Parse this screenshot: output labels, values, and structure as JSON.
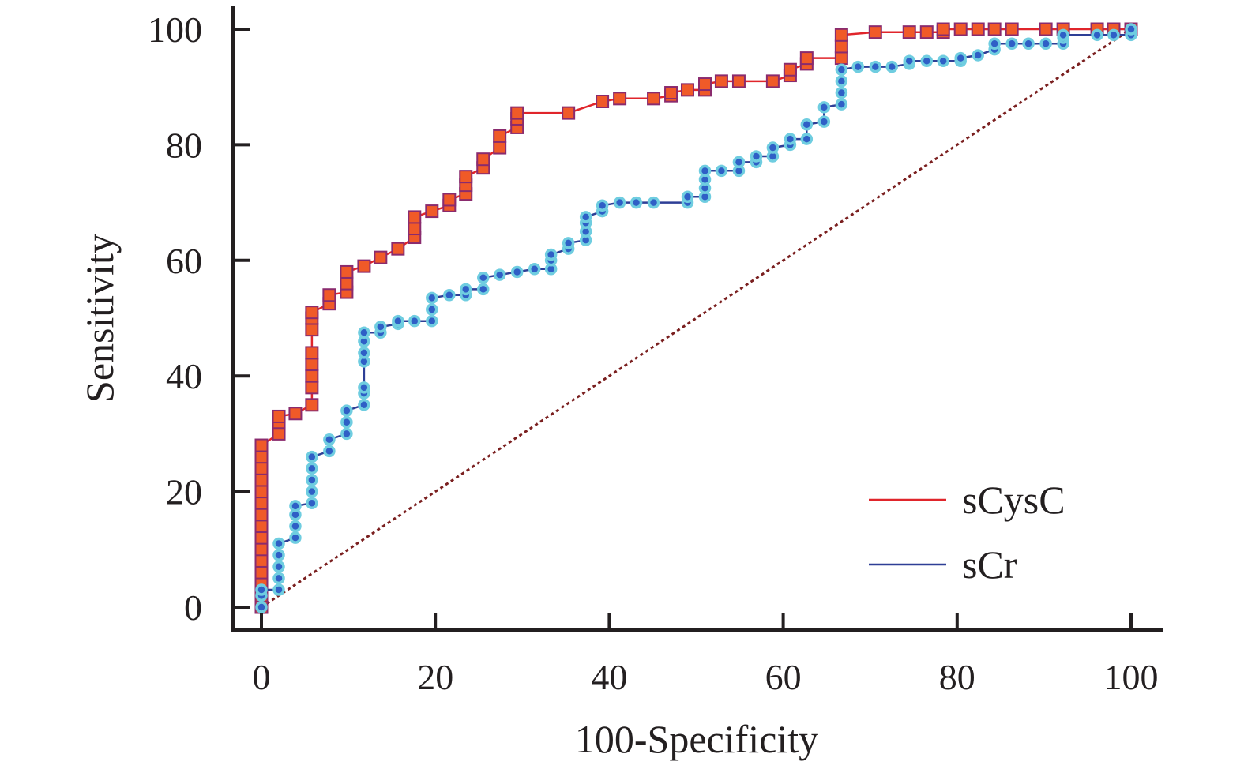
{
  "chart_data": {
    "type": "line",
    "xlabel": "100-Specificity",
    "ylabel": "Sensitivity",
    "xlim": [
      0,
      100
    ],
    "ylim": [
      0,
      100
    ],
    "x_ticks": [
      "0",
      "20",
      "40",
      "60",
      "80",
      "100"
    ],
    "y_ticks": [
      "0",
      "20",
      "40",
      "60",
      "80",
      "100"
    ],
    "legend_position": "bottom-right",
    "reference_line": {
      "from": [
        0,
        0
      ],
      "to": [
        100,
        100
      ],
      "color": "#7a1f1f",
      "style": "dotted"
    },
    "series": [
      {
        "name": "sCysC",
        "line_color": "#e0252b",
        "marker": "square",
        "marker_fill": "#f05a28",
        "marker_edge": "#8a2b6e",
        "points": [
          [
            0,
            0
          ],
          [
            0,
            2
          ],
          [
            0,
            4
          ],
          [
            0,
            6
          ],
          [
            0,
            8
          ],
          [
            0,
            10
          ],
          [
            0,
            12
          ],
          [
            0,
            14
          ],
          [
            0,
            16
          ],
          [
            0,
            18
          ],
          [
            0,
            20
          ],
          [
            0,
            22
          ],
          [
            0,
            24
          ],
          [
            0,
            26
          ],
          [
            0,
            28
          ],
          [
            2,
            30
          ],
          [
            2,
            32
          ],
          [
            2,
            33
          ],
          [
            3.9,
            33.5
          ],
          [
            5.8,
            35
          ],
          [
            5.8,
            38
          ],
          [
            5.8,
            40
          ],
          [
            5.8,
            42
          ],
          [
            5.8,
            44
          ],
          [
            5.8,
            48
          ],
          [
            5.8,
            50
          ],
          [
            5.8,
            51
          ],
          [
            7.8,
            52.5
          ],
          [
            7.8,
            54
          ],
          [
            9.8,
            54.5
          ],
          [
            9.8,
            56
          ],
          [
            9.8,
            58
          ],
          [
            11.8,
            59
          ],
          [
            13.7,
            60.5
          ],
          [
            15.7,
            62
          ],
          [
            17.6,
            64
          ],
          [
            17.6,
            65.5
          ],
          [
            17.6,
            67.5
          ],
          [
            19.6,
            68.5
          ],
          [
            21.6,
            69.5
          ],
          [
            21.6,
            70.5
          ],
          [
            23.5,
            71.5
          ],
          [
            23.5,
            73
          ],
          [
            23.5,
            74.5
          ],
          [
            25.5,
            76
          ],
          [
            25.5,
            77.5
          ],
          [
            27.4,
            79.5
          ],
          [
            27.4,
            81.5
          ],
          [
            29.4,
            83
          ],
          [
            29.4,
            84.5
          ],
          [
            29.4,
            85.5
          ],
          [
            35.3,
            85.5
          ],
          [
            39.2,
            87.5
          ],
          [
            41.2,
            88
          ],
          [
            45.1,
            88
          ],
          [
            47.1,
            88.5
          ],
          [
            47.1,
            89
          ],
          [
            49,
            89.5
          ],
          [
            51,
            89.5
          ],
          [
            51,
            90.5
          ],
          [
            52.9,
            91
          ],
          [
            54.9,
            91
          ],
          [
            58.8,
            91
          ],
          [
            60.8,
            92
          ],
          [
            60.8,
            93
          ],
          [
            62.7,
            94
          ],
          [
            62.7,
            95
          ],
          [
            66.7,
            95
          ],
          [
            66.7,
            97
          ],
          [
            66.7,
            99
          ],
          [
            70.6,
            99.5
          ],
          [
            74.5,
            99.5
          ],
          [
            76.5,
            99.5
          ],
          [
            78.4,
            99.5
          ],
          [
            78.4,
            100
          ],
          [
            80.4,
            100
          ],
          [
            82.4,
            100
          ],
          [
            84.3,
            100
          ],
          [
            86.3,
            100
          ],
          [
            90.2,
            100
          ],
          [
            92.2,
            100
          ],
          [
            96.1,
            100
          ],
          [
            98,
            100
          ],
          [
            100,
            100
          ]
        ]
      },
      {
        "name": "sCr",
        "line_color": "#2e3f96",
        "marker": "circle",
        "marker_fill": "#2f5fc6",
        "marker_edge": "#6fcde0",
        "points": [
          [
            0,
            0
          ],
          [
            0,
            2
          ],
          [
            0,
            3
          ],
          [
            2,
            3
          ],
          [
            2,
            5
          ],
          [
            2,
            7
          ],
          [
            2,
            9
          ],
          [
            2,
            11
          ],
          [
            3.9,
            12
          ],
          [
            3.9,
            14
          ],
          [
            3.9,
            16
          ],
          [
            3.9,
            17.5
          ],
          [
            5.8,
            18
          ],
          [
            5.8,
            20
          ],
          [
            5.8,
            22
          ],
          [
            5.8,
            24
          ],
          [
            5.8,
            26
          ],
          [
            7.8,
            27
          ],
          [
            7.8,
            29
          ],
          [
            9.8,
            30
          ],
          [
            9.8,
            32
          ],
          [
            9.8,
            34
          ],
          [
            11.8,
            35
          ],
          [
            11.8,
            37
          ],
          [
            11.8,
            38
          ],
          [
            11.8,
            42.5
          ],
          [
            11.8,
            44
          ],
          [
            11.8,
            46
          ],
          [
            11.8,
            47.5
          ],
          [
            13.7,
            47.5
          ],
          [
            13.7,
            48.5
          ],
          [
            15.7,
            49
          ],
          [
            15.7,
            49.5
          ],
          [
            17.6,
            49.5
          ],
          [
            19.6,
            49.5
          ],
          [
            19.6,
            51.5
          ],
          [
            19.6,
            53.5
          ],
          [
            21.6,
            54
          ],
          [
            23.5,
            54
          ],
          [
            23.5,
            55
          ],
          [
            25.5,
            55
          ],
          [
            25.5,
            57
          ],
          [
            27.4,
            57.5
          ],
          [
            29.4,
            58
          ],
          [
            31.4,
            58.5
          ],
          [
            33.3,
            58.5
          ],
          [
            33.3,
            60
          ],
          [
            33.3,
            61
          ],
          [
            35.3,
            62
          ],
          [
            35.3,
            63
          ],
          [
            37.3,
            63.5
          ],
          [
            37.3,
            65
          ],
          [
            37.3,
            66.5
          ],
          [
            37.3,
            67.5
          ],
          [
            39.2,
            68.5
          ],
          [
            39.2,
            69.5
          ],
          [
            41.2,
            70
          ],
          [
            43.1,
            70
          ],
          [
            45.1,
            70
          ],
          [
            49,
            70
          ],
          [
            49,
            71
          ],
          [
            51,
            71
          ],
          [
            51,
            72.5
          ],
          [
            51,
            74
          ],
          [
            51,
            75.5
          ],
          [
            52.9,
            75.5
          ],
          [
            54.9,
            75.5
          ],
          [
            54.9,
            77
          ],
          [
            56.9,
            77
          ],
          [
            56.9,
            78
          ],
          [
            58.8,
            78
          ],
          [
            58.8,
            79.5
          ],
          [
            60.8,
            80
          ],
          [
            60.8,
            81
          ],
          [
            62.7,
            81
          ],
          [
            62.7,
            83.5
          ],
          [
            64.7,
            84
          ],
          [
            64.7,
            86.5
          ],
          [
            66.7,
            87
          ],
          [
            66.7,
            89
          ],
          [
            66.7,
            91
          ],
          [
            66.7,
            93
          ],
          [
            68.6,
            93.5
          ],
          [
            70.6,
            93.5
          ],
          [
            72.5,
            93.5
          ],
          [
            74.5,
            94
          ],
          [
            74.5,
            94.5
          ],
          [
            76.5,
            94.5
          ],
          [
            78.4,
            94.5
          ],
          [
            80.4,
            94.5
          ],
          [
            80.4,
            95
          ],
          [
            82.4,
            95.5
          ],
          [
            84.3,
            96.5
          ],
          [
            84.3,
            97.5
          ],
          [
            86.3,
            97.5
          ],
          [
            88.2,
            97.5
          ],
          [
            90.2,
            97.5
          ],
          [
            92.2,
            97.5
          ],
          [
            92.2,
            98.5
          ],
          [
            92.2,
            99
          ],
          [
            96.1,
            99
          ],
          [
            98,
            99
          ],
          [
            100,
            99
          ],
          [
            100,
            100
          ]
        ]
      }
    ]
  }
}
